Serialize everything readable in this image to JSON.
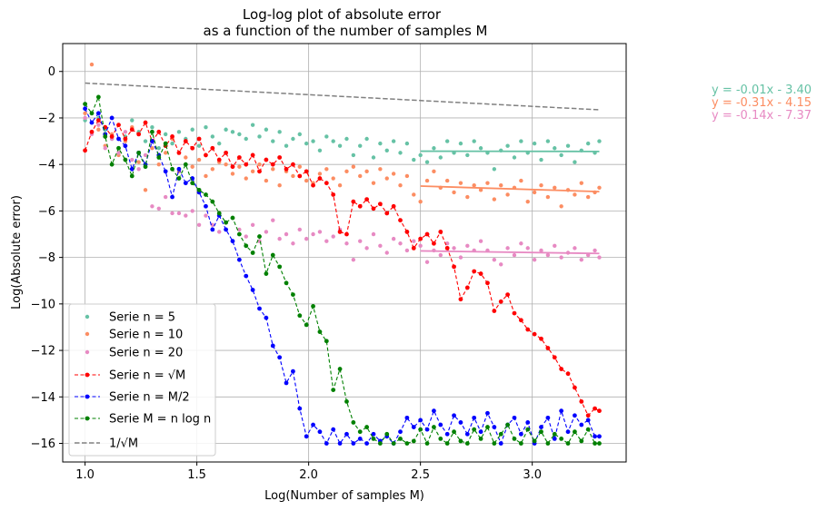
{
  "chart_data": {
    "type": "line",
    "title": "Log-log plot of absolute error",
    "subtitle": "as a function of the number of samples M",
    "xlabel": "Log(Number of samples M)",
    "ylabel": "Log(Absolute error)",
    "xlim": [
      0.9,
      3.42
    ],
    "ylim": [
      -16.8,
      1.2
    ],
    "xticks": [
      1.0,
      1.5,
      2.0,
      2.5,
      3.0
    ],
    "xtick_labels": [
      "1.0",
      "1.5",
      "2.0",
      "2.5",
      "3.0"
    ],
    "yticks": [
      0,
      -2,
      -4,
      -6,
      -8,
      -10,
      -12,
      -14,
      -16
    ],
    "ytick_labels": [
      "0",
      "−2",
      "−4",
      "−6",
      "−8",
      "−10",
      "−12",
      "−14",
      "−16"
    ],
    "grid": true,
    "legend_position": "lower-left",
    "legend": [
      {
        "label": "Serie n = 5",
        "color": "#66c2a5",
        "style": "scatter"
      },
      {
        "label": "Serie n = 10",
        "color": "#fc8d62",
        "style": "scatter"
      },
      {
        "label": "Serie n = 20",
        "color": "#e78ac3",
        "style": "scatter"
      },
      {
        "label": "Serie n = √M",
        "color": "#ff0000",
        "style": "dashed-marker"
      },
      {
        "label": "Serie n = M/2",
        "color": "#0000ff",
        "style": "dashed-marker"
      },
      {
        "label": "Serie M = n log n",
        "color": "#008000",
        "style": "dashed-marker"
      },
      {
        "label": "1/√M",
        "color": "#808080",
        "style": "dashed"
      }
    ],
    "fit_annotations": [
      {
        "text": "y = -0.01x - 3.40",
        "color": "#66c2a5"
      },
      {
        "text": "y = -0.31x - 4.15",
        "color": "#fc8d62"
      },
      {
        "text": "y = -0.14x - 7.37",
        "color": "#e78ac3"
      }
    ],
    "fit_lines": [
      {
        "color": "#66c2a5",
        "x": [
          2.5,
          3.3
        ],
        "y": [
          -3.43,
          -3.44
        ]
      },
      {
        "color": "#fc8d62",
        "x": [
          2.5,
          3.3
        ],
        "y": [
          -4.93,
          -5.17
        ]
      },
      {
        "color": "#e78ac3",
        "x": [
          2.5,
          3.3
        ],
        "y": [
          -7.72,
          -7.83
        ]
      }
    ],
    "series": [
      {
        "name": "Serie n = 5",
        "kind": "scatter",
        "color": "#66c2a5",
        "x": [
          1.0,
          1.03,
          1.06,
          1.09,
          1.12,
          1.15,
          1.18,
          1.21,
          1.24,
          1.27,
          1.3,
          1.33,
          1.36,
          1.39,
          1.42,
          1.45,
          1.48,
          1.51,
          1.54,
          1.57,
          1.6,
          1.63,
          1.66,
          1.69,
          1.72,
          1.75,
          1.78,
          1.81,
          1.84,
          1.87,
          1.9,
          1.93,
          1.96,
          1.99,
          2.02,
          2.05,
          2.08,
          2.11,
          2.14,
          2.17,
          2.2,
          2.23,
          2.26,
          2.29,
          2.32,
          2.35,
          2.38,
          2.41,
          2.44,
          2.47,
          2.5,
          2.53,
          2.56,
          2.59,
          2.62,
          2.65,
          2.68,
          2.71,
          2.74,
          2.77,
          2.8,
          2.83,
          2.86,
          2.89,
          2.92,
          2.95,
          2.98,
          3.01,
          3.04,
          3.07,
          3.1,
          3.13,
          3.16,
          3.19,
          3.22,
          3.25,
          3.28,
          3.3
        ],
        "y": [
          -2.1,
          -2.6,
          -2.0,
          -2.5,
          -2.9,
          -2.3,
          -2.8,
          -2.1,
          -2.6,
          -3.0,
          -2.4,
          -3.3,
          -2.7,
          -3.1,
          -2.6,
          -2.9,
          -2.5,
          -3.2,
          -2.4,
          -2.8,
          -3.1,
          -2.5,
          -2.6,
          -2.7,
          -2.9,
          -2.3,
          -2.8,
          -2.5,
          -3.0,
          -2.6,
          -3.2,
          -2.9,
          -2.7,
          -3.1,
          -3.0,
          -3.4,
          -2.8,
          -3.0,
          -3.2,
          -2.9,
          -3.6,
          -3.2,
          -2.9,
          -3.7,
          -3.1,
          -3.4,
          -3.0,
          -3.5,
          -3.1,
          -3.8,
          -3.6,
          -3.9,
          -3.3,
          -3.7,
          -3.0,
          -3.5,
          -3.1,
          -3.6,
          -3.0,
          -3.3,
          -3.5,
          -4.2,
          -3.4,
          -3.2,
          -3.7,
          -3.0,
          -3.5,
          -3.1,
          -3.8,
          -3.0,
          -3.3,
          -3.6,
          -3.2,
          -3.9,
          -3.4,
          -3.1,
          -3.5,
          -3.0
        ]
      },
      {
        "name": "Serie n = 10",
        "kind": "scatter",
        "color": "#fc8d62",
        "x": [
          1.0,
          1.03,
          1.06,
          1.09,
          1.12,
          1.15,
          1.18,
          1.21,
          1.24,
          1.27,
          1.3,
          1.33,
          1.36,
          1.39,
          1.42,
          1.45,
          1.48,
          1.51,
          1.54,
          1.57,
          1.6,
          1.63,
          1.66,
          1.69,
          1.72,
          1.75,
          1.78,
          1.81,
          1.84,
          1.87,
          1.9,
          1.93,
          1.96,
          1.99,
          2.02,
          2.05,
          2.08,
          2.11,
          2.14,
          2.17,
          2.2,
          2.23,
          2.26,
          2.29,
          2.32,
          2.35,
          2.38,
          2.41,
          2.44,
          2.47,
          2.5,
          2.53,
          2.56,
          2.59,
          2.62,
          2.65,
          2.68,
          2.71,
          2.74,
          2.77,
          2.8,
          2.83,
          2.86,
          2.89,
          2.92,
          2.95,
          2.98,
          3.01,
          3.04,
          3.07,
          3.1,
          3.13,
          3.16,
          3.19,
          3.22,
          3.25,
          3.28,
          3.3
        ],
        "y": [
          -1.8,
          0.3,
          -2.5,
          -3.2,
          -2.7,
          -3.6,
          -3.0,
          -2.4,
          -3.9,
          -5.1,
          -3.3,
          -4.0,
          -3.5,
          -2.9,
          -4.3,
          -3.7,
          -4.1,
          -3.8,
          -4.5,
          -4.2,
          -3.9,
          -4.0,
          -4.4,
          -4.1,
          -4.6,
          -4.3,
          -4.0,
          -4.7,
          -4.2,
          -4.9,
          -4.3,
          -4.5,
          -4.1,
          -4.7,
          -4.8,
          -4.4,
          -4.2,
          -4.6,
          -4.9,
          -4.3,
          -4.1,
          -4.5,
          -4.3,
          -4.8,
          -4.2,
          -4.6,
          -4.4,
          -4.9,
          -4.5,
          -5.3,
          -5.6,
          -4.7,
          -4.3,
          -5.0,
          -4.7,
          -5.2,
          -4.8,
          -5.4,
          -4.9,
          -5.1,
          -4.8,
          -5.5,
          -4.9,
          -5.3,
          -5.0,
          -4.7,
          -5.6,
          -5.2,
          -4.9,
          -5.4,
          -5.0,
          -5.8,
          -5.1,
          -5.3,
          -4.8,
          -5.4,
          -5.2,
          -5.0
        ]
      },
      {
        "name": "Serie n = 20",
        "kind": "scatter",
        "color": "#e78ac3",
        "x": [
          1.0,
          1.03,
          1.06,
          1.09,
          1.12,
          1.15,
          1.18,
          1.21,
          1.24,
          1.27,
          1.3,
          1.33,
          1.36,
          1.39,
          1.42,
          1.45,
          1.48,
          1.51,
          1.54,
          1.57,
          1.6,
          1.63,
          1.66,
          1.69,
          1.72,
          1.75,
          1.78,
          1.81,
          1.84,
          1.87,
          1.9,
          1.93,
          1.96,
          1.99,
          2.02,
          2.05,
          2.08,
          2.11,
          2.14,
          2.17,
          2.2,
          2.23,
          2.26,
          2.29,
          2.32,
          2.35,
          2.38,
          2.41,
          2.44,
          2.47,
          2.5,
          2.53,
          2.56,
          2.59,
          2.62,
          2.65,
          2.68,
          2.71,
          2.74,
          2.77,
          2.8,
          2.83,
          2.86,
          2.89,
          2.92,
          2.95,
          2.98,
          3.01,
          3.04,
          3.07,
          3.1,
          3.13,
          3.16,
          3.19,
          3.22,
          3.25,
          3.28,
          3.3
        ],
        "y": [
          -2.0,
          -2.7,
          -2.3,
          -3.3,
          -2.9,
          -3.5,
          -2.6,
          -3.8,
          -4.2,
          -3.6,
          -5.8,
          -5.9,
          -5.4,
          -6.1,
          -6.1,
          -6.2,
          -6.0,
          -6.6,
          -6.2,
          -6.6,
          -6.9,
          -6.5,
          -6.3,
          -6.8,
          -7.1,
          -6.6,
          -7.3,
          -6.9,
          -6.4,
          -7.2,
          -7.0,
          -7.4,
          -6.8,
          -7.2,
          -7.0,
          -6.9,
          -7.3,
          -7.1,
          -6.8,
          -7.4,
          -8.1,
          -7.3,
          -7.6,
          -7.0,
          -7.5,
          -7.8,
          -7.2,
          -7.4,
          -7.7,
          -7.3,
          -7.5,
          -8.2,
          -7.7,
          -7.9,
          -7.4,
          -7.6,
          -8.0,
          -7.5,
          -7.7,
          -7.3,
          -7.7,
          -8.1,
          -8.3,
          -7.6,
          -7.9,
          -7.4,
          -7.6,
          -8.1,
          -7.7,
          -7.9,
          -7.5,
          -8.0,
          -7.8,
          -7.6,
          -8.1,
          -7.9,
          -7.7,
          -8.0
        ]
      },
      {
        "name": "Serie n = √M",
        "kind": "line",
        "color": "#ff0000",
        "x": [
          1.0,
          1.03,
          1.06,
          1.09,
          1.12,
          1.15,
          1.18,
          1.21,
          1.24,
          1.27,
          1.3,
          1.33,
          1.36,
          1.39,
          1.42,
          1.45,
          1.48,
          1.51,
          1.54,
          1.57,
          1.6,
          1.63,
          1.66,
          1.69,
          1.72,
          1.75,
          1.78,
          1.81,
          1.84,
          1.87,
          1.9,
          1.93,
          1.96,
          1.99,
          2.02,
          2.05,
          2.08,
          2.11,
          2.14,
          2.17,
          2.2,
          2.23,
          2.26,
          2.29,
          2.32,
          2.35,
          2.38,
          2.41,
          2.44,
          2.47,
          2.5,
          2.53,
          2.56,
          2.59,
          2.62,
          2.65,
          2.68,
          2.71,
          2.74,
          2.77,
          2.8,
          2.83,
          2.86,
          2.89,
          2.92,
          2.95,
          2.98,
          3.01,
          3.04,
          3.07,
          3.1,
          3.13,
          3.16,
          3.19,
          3.22,
          3.25,
          3.28,
          3.3
        ],
        "y": [
          -3.4,
          -2.6,
          -2.1,
          -2.4,
          -2.8,
          -2.3,
          -2.9,
          -2.5,
          -2.7,
          -2.2,
          -3.0,
          -2.6,
          -3.2,
          -2.8,
          -3.5,
          -3.0,
          -3.3,
          -2.9,
          -3.6,
          -3.3,
          -3.8,
          -3.5,
          -4.1,
          -3.7,
          -4.0,
          -3.6,
          -4.3,
          -3.8,
          -4.0,
          -3.7,
          -4.2,
          -4.0,
          -4.5,
          -4.3,
          -4.9,
          -4.6,
          -4.8,
          -5.3,
          -6.9,
          -7.0,
          -5.6,
          -5.8,
          -5.5,
          -5.9,
          -5.7,
          -6.1,
          -5.8,
          -6.4,
          -6.9,
          -7.6,
          -7.2,
          -7.0,
          -7.4,
          -6.9,
          -7.6,
          -8.4,
          -9.8,
          -9.3,
          -8.6,
          -8.7,
          -9.1,
          -10.3,
          -9.9,
          -9.6,
          -10.4,
          -10.7,
          -11.1,
          -11.3,
          -11.5,
          -11.9,
          -12.3,
          -12.8,
          -13.0,
          -13.6,
          -14.2,
          -14.8,
          -14.5,
          -14.6
        ]
      },
      {
        "name": "Serie n = M/2",
        "kind": "line",
        "color": "#0000ff",
        "x": [
          1.0,
          1.03,
          1.06,
          1.09,
          1.12,
          1.15,
          1.18,
          1.21,
          1.24,
          1.27,
          1.3,
          1.33,
          1.36,
          1.39,
          1.42,
          1.45,
          1.48,
          1.51,
          1.54,
          1.57,
          1.6,
          1.63,
          1.66,
          1.69,
          1.72,
          1.75,
          1.78,
          1.81,
          1.84,
          1.87,
          1.9,
          1.93,
          1.96,
          1.99,
          2.02,
          2.05,
          2.08,
          2.11,
          2.14,
          2.17,
          2.2,
          2.23,
          2.26,
          2.29,
          2.32,
          2.35,
          2.38,
          2.41,
          2.44,
          2.47,
          2.5,
          2.53,
          2.56,
          2.59,
          2.62,
          2.65,
          2.68,
          2.71,
          2.74,
          2.77,
          2.8,
          2.83,
          2.86,
          2.89,
          2.92,
          2.95,
          2.98,
          3.01,
          3.04,
          3.07,
          3.1,
          3.13,
          3.16,
          3.19,
          3.22,
          3.25,
          3.28,
          3.3
        ],
        "y": [
          -1.6,
          -2.2,
          -1.8,
          -2.7,
          -2.0,
          -2.9,
          -3.2,
          -4.2,
          -3.5,
          -4.0,
          -3.0,
          -3.6,
          -4.3,
          -5.4,
          -4.2,
          -4.8,
          -4.6,
          -5.2,
          -5.8,
          -6.8,
          -6.2,
          -6.8,
          -7.3,
          -8.1,
          -8.8,
          -9.4,
          -10.2,
          -10.6,
          -11.8,
          -12.3,
          -13.4,
          -12.9,
          -14.5,
          -15.7,
          -15.2,
          -15.5,
          -16.0,
          -15.4,
          -16.0,
          -15.6,
          -16.0,
          -15.8,
          -16.0,
          -15.6,
          -15.9,
          -15.7,
          -16.0,
          -15.5,
          -14.9,
          -15.3,
          -15.0,
          -15.4,
          -14.6,
          -15.2,
          -15.6,
          -14.8,
          -15.1,
          -15.6,
          -14.9,
          -15.5,
          -14.7,
          -15.3,
          -16.0,
          -15.2,
          -14.9,
          -15.6,
          -15.1,
          -16.0,
          -15.3,
          -14.9,
          -15.8,
          -14.6,
          -15.5,
          -14.8,
          -15.2,
          -15.0,
          -15.7,
          -15.7
        ]
      },
      {
        "name": "Serie M = n log n",
        "kind": "line",
        "color": "#008000",
        "x": [
          1.0,
          1.03,
          1.06,
          1.09,
          1.12,
          1.15,
          1.18,
          1.21,
          1.24,
          1.27,
          1.3,
          1.33,
          1.36,
          1.39,
          1.42,
          1.45,
          1.48,
          1.51,
          1.54,
          1.57,
          1.6,
          1.63,
          1.66,
          1.69,
          1.72,
          1.75,
          1.78,
          1.81,
          1.84,
          1.87,
          1.9,
          1.93,
          1.96,
          1.99,
          2.02,
          2.05,
          2.08,
          2.11,
          2.14,
          2.17,
          2.2,
          2.23,
          2.26,
          2.29,
          2.32,
          2.35,
          2.38,
          2.41,
          2.44,
          2.47,
          2.5,
          2.53,
          2.56,
          2.59,
          2.62,
          2.65,
          2.68,
          2.71,
          2.74,
          2.77,
          2.8,
          2.83,
          2.86,
          2.89,
          2.92,
          2.95,
          2.98,
          3.01,
          3.04,
          3.07,
          3.1,
          3.13,
          3.16,
          3.19,
          3.22,
          3.25,
          3.28,
          3.3
        ],
        "y": [
          -1.4,
          -1.8,
          -1.1,
          -2.8,
          -4.0,
          -3.3,
          -3.8,
          -4.5,
          -3.5,
          -4.1,
          -2.6,
          -3.7,
          -3.1,
          -4.2,
          -4.6,
          -4.0,
          -4.8,
          -5.1,
          -5.3,
          -5.6,
          -6.1,
          -6.5,
          -6.3,
          -7.0,
          -7.5,
          -7.8,
          -7.1,
          -8.7,
          -7.9,
          -8.4,
          -9.1,
          -9.6,
          -10.5,
          -10.9,
          -10.1,
          -11.2,
          -11.6,
          -13.7,
          -12.8,
          -14.2,
          -15.1,
          -15.5,
          -15.3,
          -15.8,
          -16.0,
          -15.6,
          -16.0,
          -15.8,
          -16.0,
          -15.9,
          -15.4,
          -16.0,
          -15.3,
          -15.8,
          -16.0,
          -15.5,
          -15.9,
          -16.0,
          -15.4,
          -15.8,
          -15.3,
          -16.0,
          -15.6,
          -15.2,
          -15.8,
          -16.0,
          -15.4,
          -15.9,
          -15.5,
          -16.0,
          -15.6,
          -15.8,
          -16.0,
          -15.5,
          -15.9,
          -15.4,
          -16.0,
          -16.0
        ]
      },
      {
        "name": "1/√M",
        "kind": "dashed",
        "color": "#808080",
        "x": [
          1.0,
          3.3
        ],
        "y": [
          -0.5,
          -1.65
        ]
      }
    ]
  }
}
